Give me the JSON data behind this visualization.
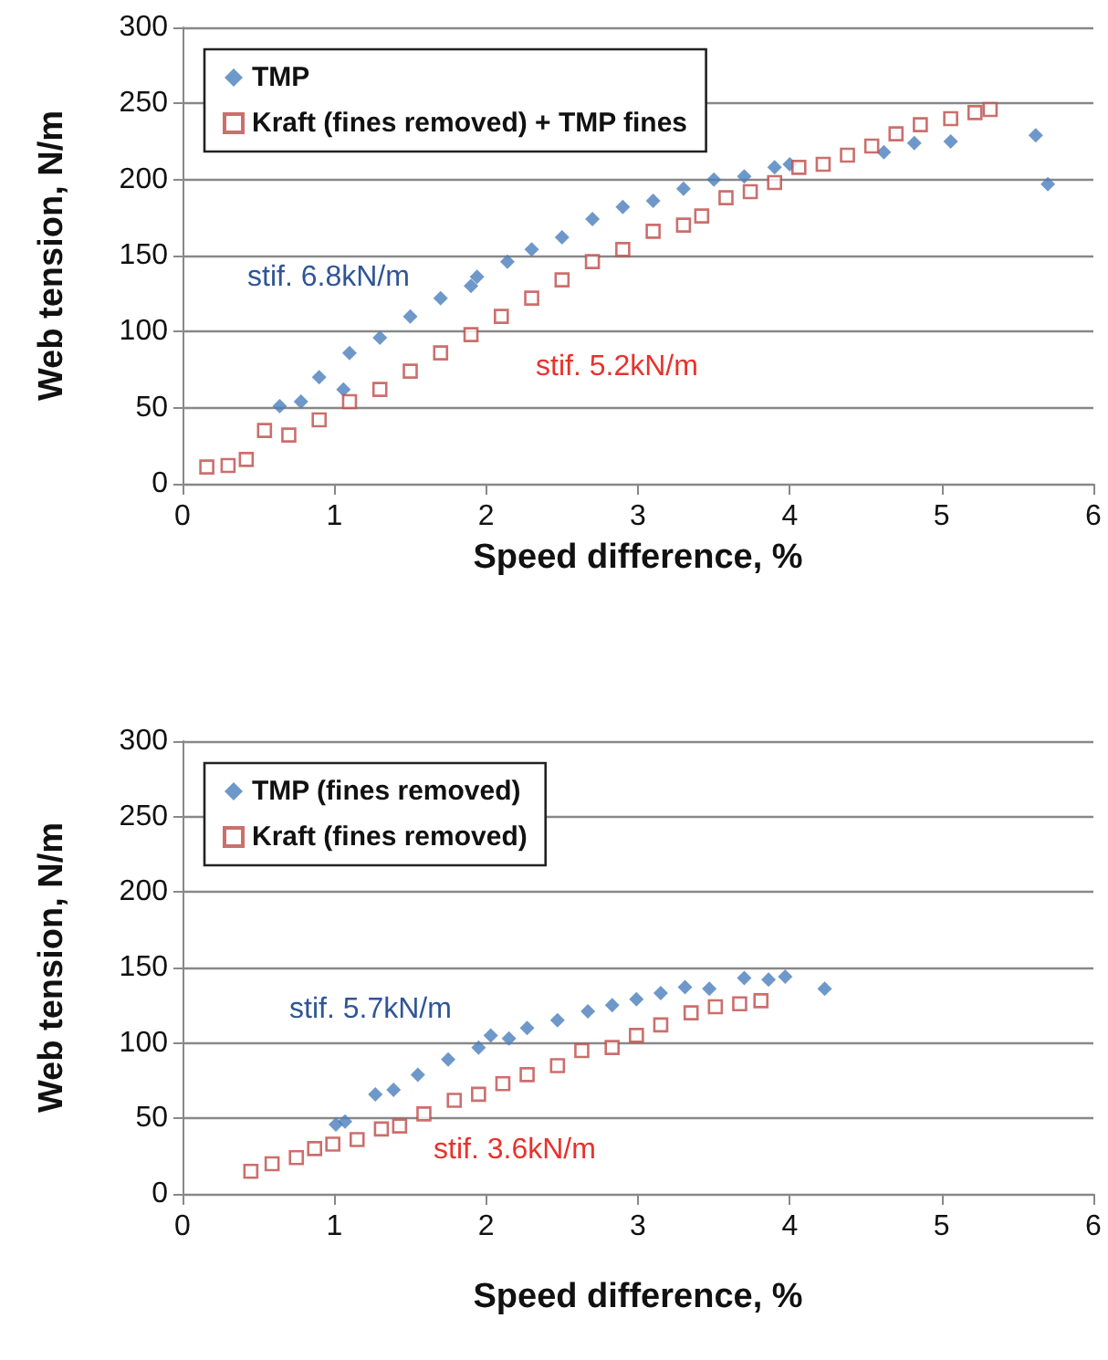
{
  "chart_data": [
    {
      "type": "scatter",
      "xlabel": "Speed difference, %",
      "ylabel": "Web tension, N/m",
      "xlim": [
        0,
        6
      ],
      "xticks": [
        0,
        1,
        2,
        3,
        4,
        5,
        6
      ],
      "ylim": [
        0,
        300
      ],
      "yticks": [
        0,
        50,
        100,
        150,
        200,
        250,
        300
      ],
      "grid": "y",
      "legend": "top left",
      "annotations": [
        "stif. 6.8kN/m",
        "stif. 5.2kN/m"
      ],
      "series": [
        {
          "name": "TMP",
          "color": "#4a7ebb",
          "marker": "diamond",
          "x": [
            0.64,
            0.78,
            0.9,
            1.06,
            1.1,
            1.3,
            1.5,
            1.7,
            1.9,
            1.94,
            2.14,
            2.3,
            2.5,
            2.7,
            2.9,
            3.1,
            3.3,
            3.5,
            3.7,
            3.9,
            4.0,
            4.62,
            4.82,
            5.06,
            5.62,
            5.7
          ],
          "values": [
            51,
            54,
            70,
            62,
            86,
            96,
            110,
            122,
            130,
            136,
            146,
            154,
            162,
            174,
            182,
            186,
            194,
            200,
            202,
            208,
            210,
            218,
            224,
            225,
            229,
            197
          ]
        },
        {
          "name": "Kraft (fines removed) + TMP fines",
          "color": "#be4b48",
          "marker": "square",
          "x": [
            0.16,
            0.3,
            0.42,
            0.54,
            0.7,
            0.9,
            1.1,
            1.3,
            1.5,
            1.7,
            1.9,
            2.1,
            2.3,
            2.5,
            2.7,
            2.9,
            3.1,
            3.3,
            3.42,
            3.58,
            3.74,
            3.9,
            4.06,
            4.22,
            4.38,
            4.54,
            4.7,
            4.86,
            5.06,
            5.22,
            5.32
          ],
          "values": [
            11,
            12,
            16,
            35,
            32,
            42,
            54,
            62,
            74,
            86,
            98,
            110,
            122,
            134,
            146,
            154,
            166,
            170,
            176,
            188,
            192,
            198,
            208,
            210,
            216,
            222,
            230,
            236,
            240,
            244,
            246
          ]
        }
      ]
    },
    {
      "type": "scatter",
      "xlabel": "Speed difference, %",
      "ylabel": "Web tension, N/m",
      "xlim": [
        0,
        6
      ],
      "xticks": [
        0,
        1,
        2,
        3,
        4,
        5,
        6
      ],
      "ylim": [
        0,
        300
      ],
      "yticks": [
        0,
        50,
        100,
        150,
        200,
        250,
        300
      ],
      "grid": "y",
      "legend": "top left",
      "annotations": [
        "stif. 5.7kN/m",
        "stif. 3.6kN/m"
      ],
      "series": [
        {
          "name": "TMP (fines removed)",
          "color": "#4a7ebb",
          "marker": "diamond",
          "x": [
            1.01,
            1.07,
            1.27,
            1.39,
            1.55,
            1.75,
            1.95,
            2.03,
            2.15,
            2.27,
            2.47,
            2.67,
            2.83,
            2.99,
            3.15,
            3.31,
            3.47,
            3.7,
            3.86,
            3.97,
            4.23
          ],
          "values": [
            46,
            48,
            66,
            69,
            79,
            89,
            97,
            105,
            103,
            110,
            115,
            121,
            125,
            129,
            133,
            137,
            136,
            143,
            142,
            144,
            136
          ]
        },
        {
          "name": "Kraft (fines removed)",
          "color": "#be4b48",
          "marker": "square",
          "x": [
            0.45,
            0.59,
            0.75,
            0.87,
            0.99,
            1.15,
            1.31,
            1.43,
            1.59,
            1.79,
            1.95,
            2.11,
            2.27,
            2.47,
            2.63,
            2.83,
            2.99,
            3.15,
            3.35,
            3.51,
            3.67,
            3.81
          ],
          "values": [
            15,
            20,
            24,
            30,
            33,
            36,
            43,
            45,
            53,
            62,
            66,
            73,
            79,
            85,
            95,
            97,
            105,
            112,
            120,
            124,
            126,
            128
          ]
        }
      ]
    }
  ]
}
